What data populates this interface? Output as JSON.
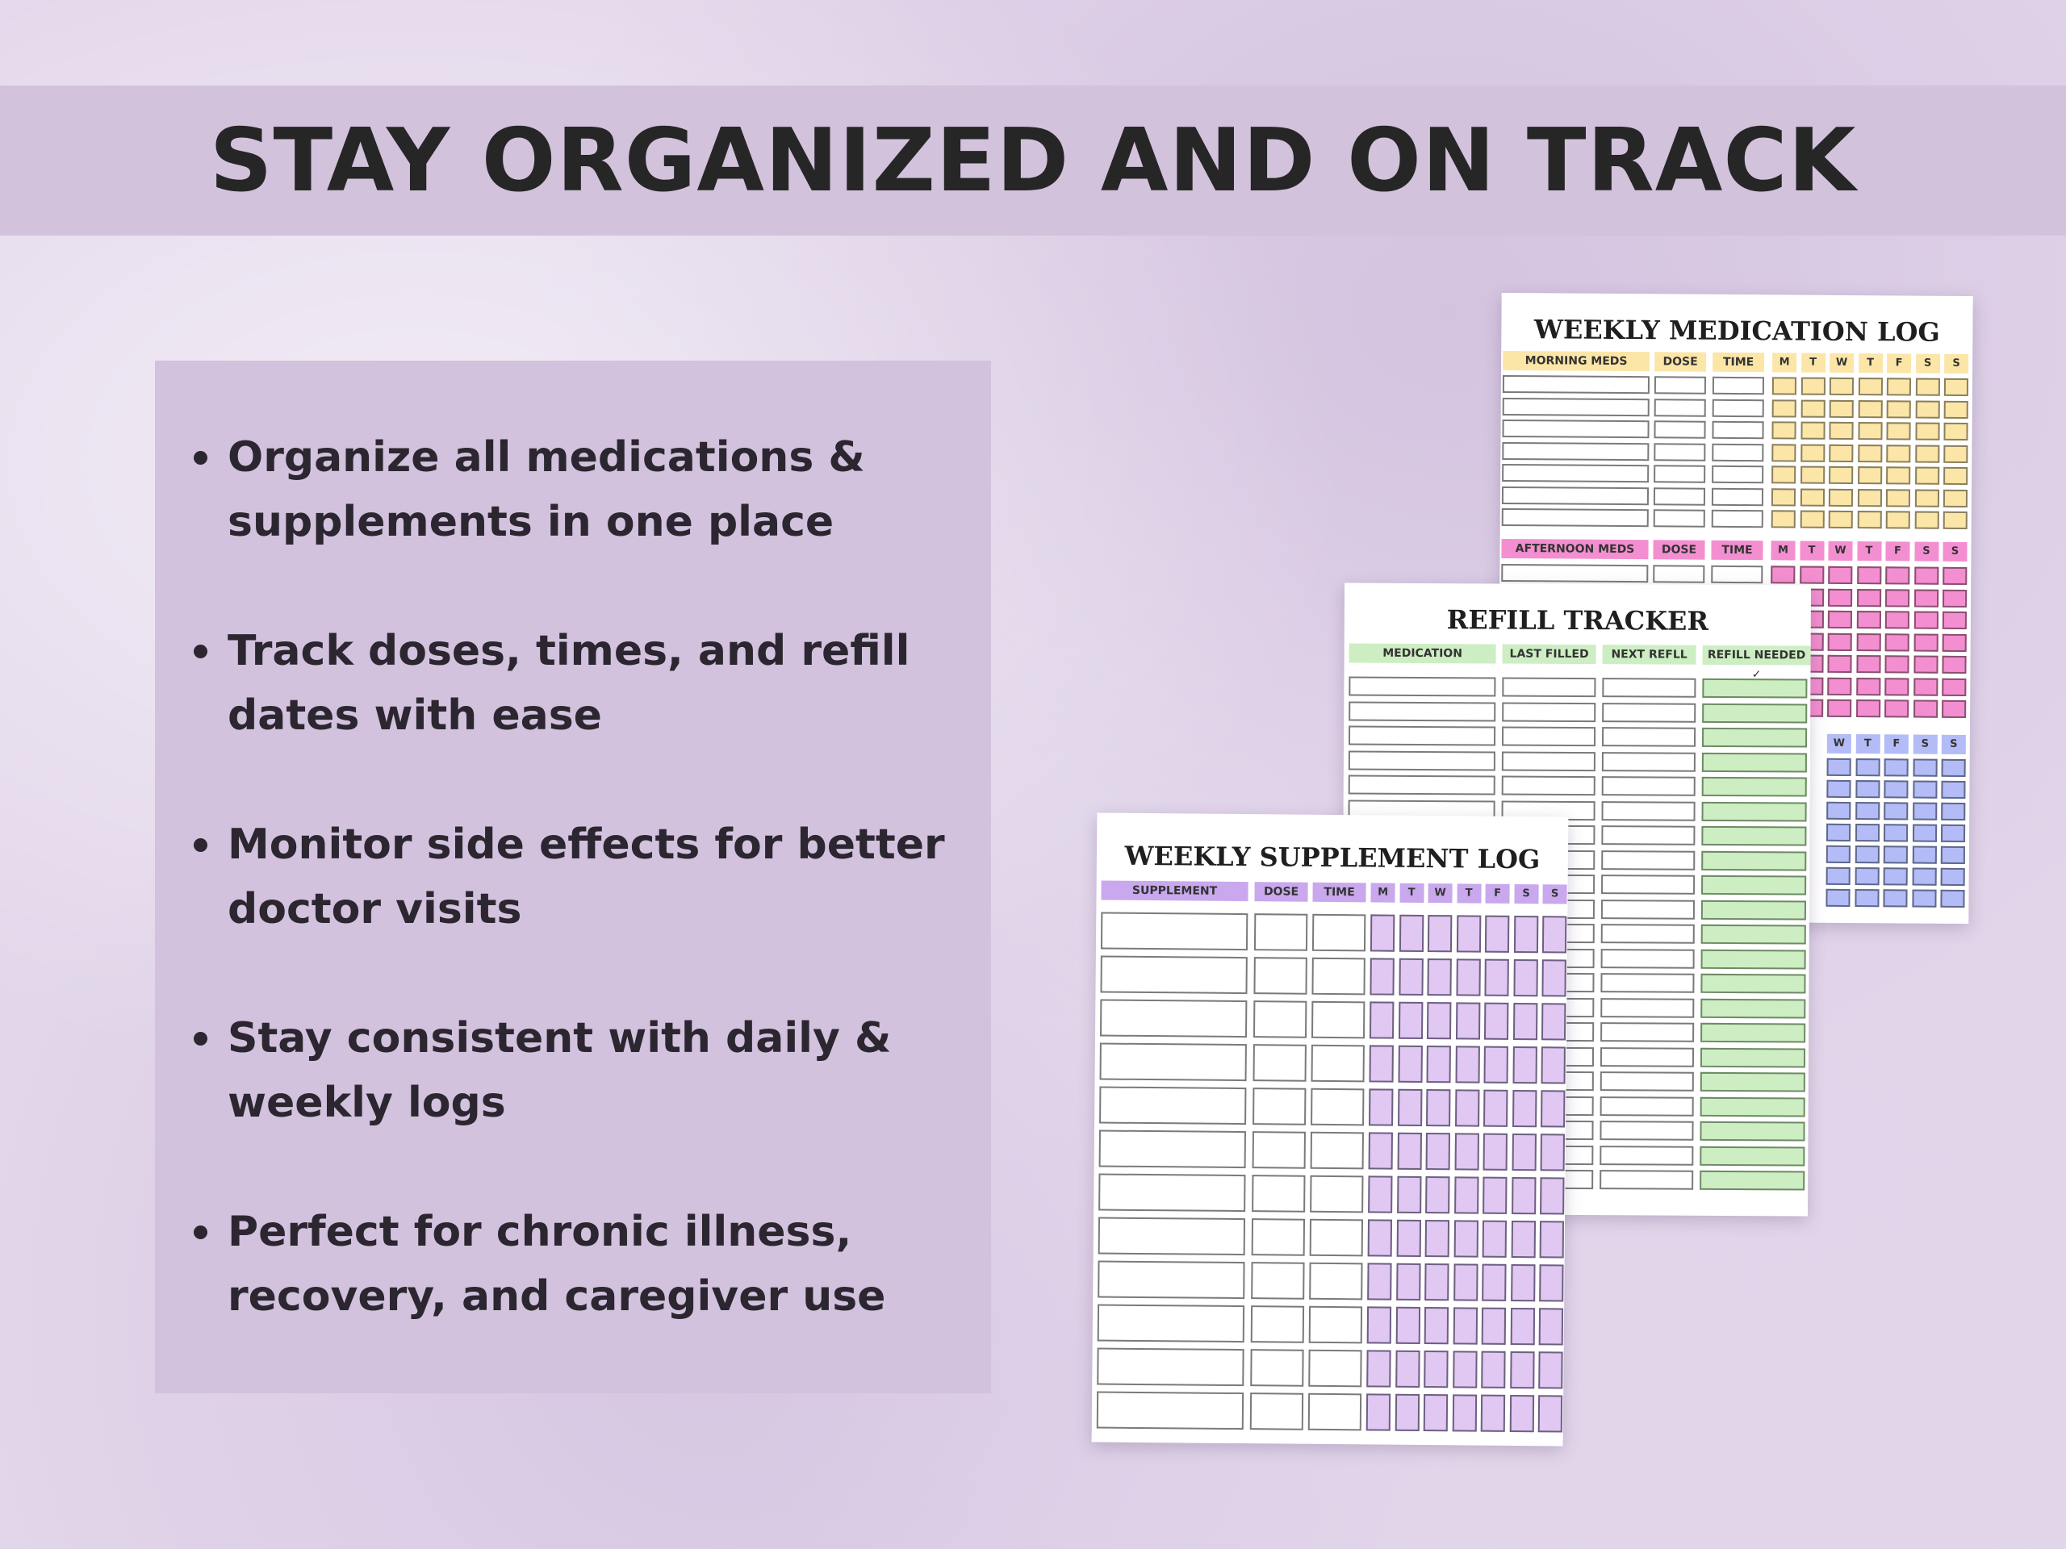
{
  "banner": {
    "title": "STAY ORGANIZED AND ON TRACK"
  },
  "features": [
    "Organize all medications & supplements in one place",
    "Track doses, times, and refill dates with ease",
    "Monitor side effects for better doctor visits",
    "Stay consistent with daily & weekly logs",
    "Perfect for chronic illness, recovery, and caregiver use"
  ],
  "colors": {
    "banner": "#d3c2dc",
    "panel": "#d2c2dd",
    "yellow": "#fbe6a8",
    "pink": "#f38fd0",
    "blue": "#b3bcf6",
    "green": "#cdeec3",
    "purple": "#e0c8f3",
    "purple_header": "#c9a8ee"
  },
  "medication_log": {
    "title": "WEEKLY MEDICATION LOG",
    "morning": {
      "label": "MORNING MEDS",
      "dose": "DOSE",
      "time": "TIME"
    },
    "afternoon": {
      "label": "AFTERNOON MEDS",
      "dose": "DOSE",
      "time": "TIME"
    },
    "days": [
      "M",
      "T",
      "W",
      "T",
      "F",
      "S",
      "S"
    ],
    "evening_days": [
      "W",
      "T",
      "F",
      "S",
      "S"
    ]
  },
  "refill_tracker": {
    "title": "REFILL TRACKER",
    "columns": [
      "MEDICATION",
      "LAST FILLED",
      "NEXT REFLL",
      "REFILL NEEDED ✓"
    ]
  },
  "supplement_log": {
    "title": "WEEKLY SUPPLEMENT LOG",
    "supplement": "SUPPLEMENT",
    "dose": "DOSE",
    "time": "TIME",
    "days": [
      "M",
      "T",
      "W",
      "T",
      "F",
      "S",
      "S"
    ]
  }
}
